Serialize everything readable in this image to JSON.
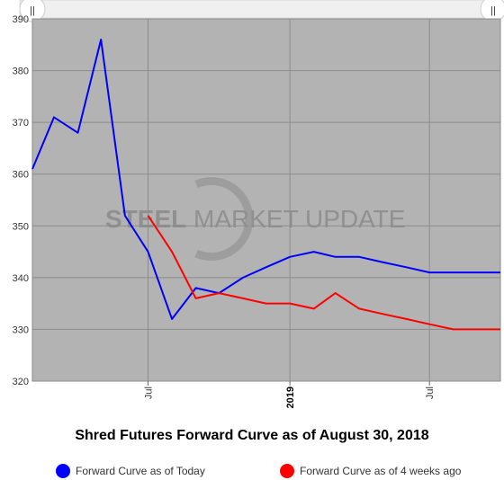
{
  "chart_data": {
    "type": "line",
    "title": "Shred Futures Forward Curve as of August 30, 2018",
    "xlabel": "",
    "ylabel": "",
    "ylim": [
      320,
      390
    ],
    "y_ticks": [
      "320",
      "330",
      "340",
      "350",
      "360",
      "370",
      "380",
      "390"
    ],
    "x_tick_labels": [
      {
        "label": "Jul",
        "date": "2018-07-01",
        "bold": false
      },
      {
        "label": "2019",
        "date": "2019-01-01",
        "bold": true
      },
      {
        "label": "Jul",
        "date": "2019-07-01",
        "bold": false
      }
    ],
    "x_range": [
      "2018-02-01",
      "2019-10-01"
    ],
    "grid": true,
    "legend_position": "bottom",
    "series": [
      {
        "name": "Forward Curve as of Today",
        "color": "#0000ff",
        "x": [
          "2018-02-01",
          "2018-03-01",
          "2018-04-01",
          "2018-05-01",
          "2018-06-01",
          "2018-07-01",
          "2018-08-01",
          "2018-09-01",
          "2018-10-01",
          "2018-11-01",
          "2018-12-01",
          "2019-01-01",
          "2019-02-01",
          "2019-03-01",
          "2019-04-01",
          "2019-05-01",
          "2019-06-01",
          "2019-07-01",
          "2019-08-01",
          "2019-09-01",
          "2019-10-01"
        ],
        "values": [
          361,
          371,
          368,
          386,
          352,
          345,
          332,
          338,
          337,
          340,
          342,
          344,
          345,
          344,
          344,
          343,
          342,
          341,
          341,
          341,
          341
        ]
      },
      {
        "name": "Forward Curve as of 4 weeks ago",
        "color": "#ff0000",
        "x": [
          "2018-07-01",
          "2018-08-01",
          "2018-09-01",
          "2018-10-01",
          "2018-11-01",
          "2018-12-01",
          "2019-01-01",
          "2019-02-01",
          "2019-03-01",
          "2019-04-01",
          "2019-05-01",
          "2019-06-01",
          "2019-07-01",
          "2019-08-01",
          "2019-09-01",
          "2019-10-01"
        ],
        "values": [
          352,
          345,
          336,
          337,
          336,
          335,
          335,
          334,
          337,
          334,
          333,
          332,
          331,
          330,
          330,
          330
        ]
      }
    ]
  },
  "watermark": {
    "part1": "STEEL",
    "part2": " MARKET",
    "part3": " UPDATE"
  },
  "scrollbar": {
    "left_handle": "||",
    "right_handle": "||"
  },
  "colors": {
    "plot_bg": "#b3b3b3",
    "grid": "#8c8c8c"
  }
}
